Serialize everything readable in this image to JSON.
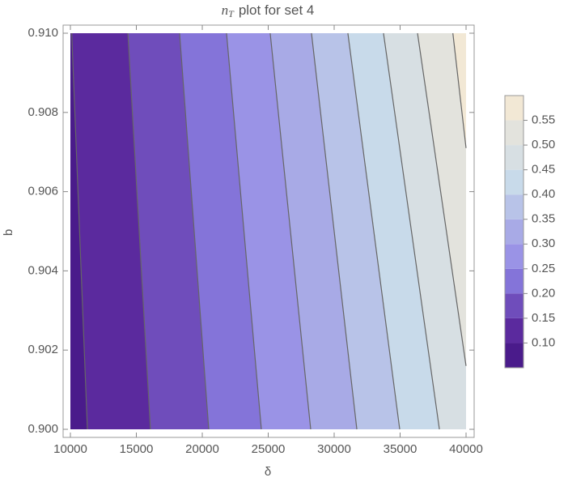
{
  "chart_data": {
    "type": "contour",
    "title_symbol": "n",
    "title_subscript": "T",
    "title_text": "plot for set 4",
    "x_label": "δ",
    "y_label": "b",
    "xlim": [
      10000,
      40000
    ],
    "ylim": [
      0.9,
      0.91
    ],
    "xticks": [
      10000,
      15000,
      20000,
      25000,
      30000,
      35000,
      40000
    ],
    "yticks": [
      {
        "value": 0.9,
        "label": "0.900"
      },
      {
        "value": 0.902,
        "label": "0.902"
      },
      {
        "value": 0.904,
        "label": "0.904"
      },
      {
        "value": 0.906,
        "label": "0.906"
      },
      {
        "value": 0.908,
        "label": "0.908"
      },
      {
        "value": 0.91,
        "label": "0.910"
      }
    ],
    "clim": [
      0.05,
      0.6
    ],
    "cticks": [
      {
        "value": 0.1,
        "label": "0.10"
      },
      {
        "value": 0.15,
        "label": "0.15"
      },
      {
        "value": 0.2,
        "label": "0.20"
      },
      {
        "value": 0.25,
        "label": "0.25"
      },
      {
        "value": 0.3,
        "label": "0.30"
      },
      {
        "value": 0.35,
        "label": "0.35"
      },
      {
        "value": 0.4,
        "label": "0.40"
      },
      {
        "value": 0.45,
        "label": "0.45"
      },
      {
        "value": 0.5,
        "label": "0.50"
      },
      {
        "value": 0.55,
        "label": "0.55"
      }
    ],
    "band_colors": [
      "#4a1b8b",
      "#5b2a9e",
      "#6f4dbb",
      "#8474d9",
      "#9a93e6",
      "#a8aae6",
      "#b8c3e8",
      "#c8daea",
      "#d7dfe3",
      "#e3e3dd",
      "#f2e8d5"
    ],
    "contour_color": "#666666",
    "contours": [
      {
        "x": [
          11290,
          10100
        ],
        "y": [
          0.9,
          0.91
        ]
      },
      {
        "x": [
          16070,
          14360
        ],
        "y": [
          0.9,
          0.91
        ]
      },
      {
        "x": [
          20490,
          18280
        ],
        "y": [
          0.9,
          0.91
        ]
      },
      {
        "x": [
          24480,
          21840
        ],
        "y": [
          0.9,
          0.91
        ]
      },
      {
        "x": [
          28220,
          25150
        ],
        "y": [
          0.9,
          0.91
        ]
      },
      {
        "x": [
          31720,
          28280
        ],
        "y": [
          0.9,
          0.91
        ]
      },
      {
        "x": [
          34970,
          31040
        ],
        "y": [
          0.9,
          0.91
        ]
      },
      {
        "x": [
          37980,
          33740
        ],
        "y": [
          0.9,
          0.91
        ]
      },
      {
        "x": [
          40000,
          36320
        ],
        "y": [
          0.9016,
          0.91
        ]
      },
      {
        "x": [
          40000,
          39000
        ],
        "y": [
          0.9071,
          0.91
        ]
      }
    ]
  }
}
